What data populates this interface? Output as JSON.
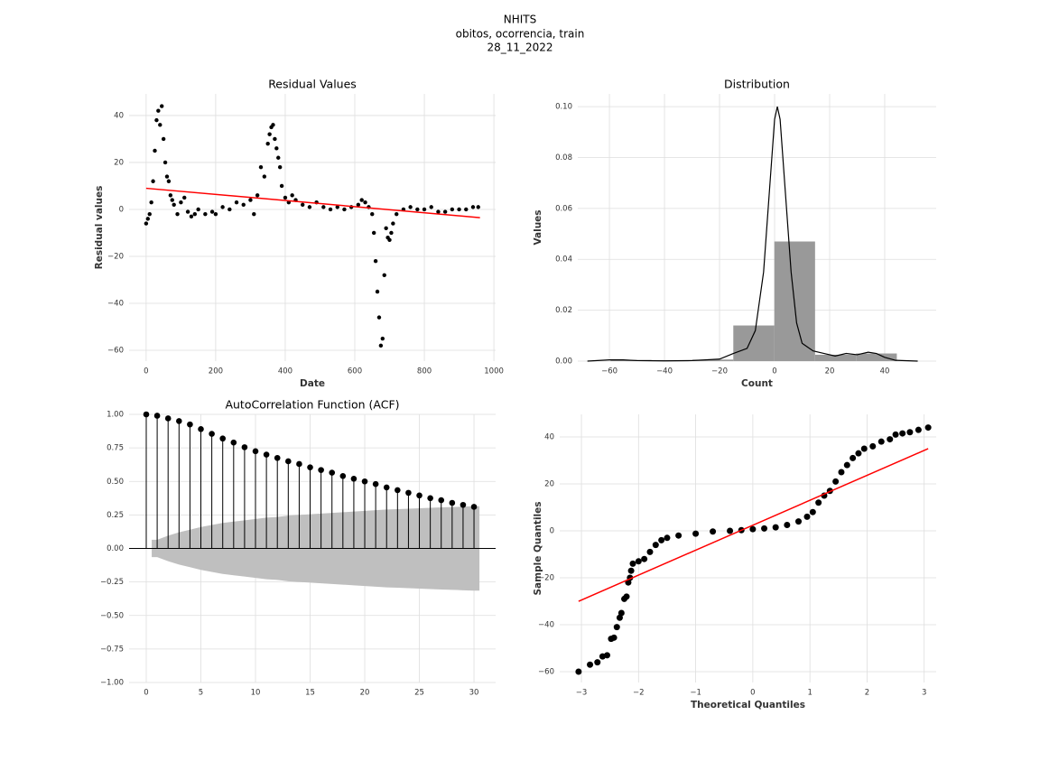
{
  "suptitle": [
    "NHITS",
    "obitos, ocorrencia, train",
    "28_11_2022"
  ],
  "chart_data": [
    {
      "type": "scatter",
      "title": "Residual Values",
      "x_label": "Date",
      "y_label": "Residual values",
      "grid": true,
      "xlim": [
        -49,
        1005
      ],
      "ylim": [
        -64.6,
        49.2
      ],
      "xticks": [
        0,
        200,
        400,
        600,
        800,
        1000
      ],
      "yticks": [
        {
          "value": -60,
          "label": "−60"
        },
        {
          "value": -40,
          "label": "−40"
        },
        {
          "value": -20,
          "label": "−20"
        },
        0,
        20,
        40
      ],
      "series": [
        {
          "type": "scatter",
          "color": "#000000",
          "x": [
            0,
            5,
            10,
            15,
            20,
            25,
            30,
            35,
            40,
            45,
            50,
            55,
            60,
            65,
            70,
            75,
            80,
            90,
            100,
            110,
            120,
            130,
            140,
            150,
            170,
            190,
            200,
            220,
            240,
            260,
            280,
            300,
            310,
            320,
            330,
            340,
            350,
            355,
            360,
            365,
            370,
            375,
            380,
            385,
            390,
            400,
            410,
            420,
            430,
            450,
            470,
            490,
            510,
            530,
            550,
            570,
            590,
            610,
            620,
            630,
            640,
            650,
            655,
            660,
            665,
            670,
            675,
            680,
            685,
            690,
            695,
            700,
            705,
            710,
            720,
            740,
            760,
            780,
            800,
            820,
            840,
            860,
            880,
            900,
            920,
            940,
            955
          ],
          "values": [
            -6,
            -4,
            -2,
            3,
            12,
            25,
            38,
            42,
            36,
            44,
            30,
            20,
            14,
            12,
            6,
            4,
            2,
            -2,
            3,
            5,
            -1,
            -3,
            -2,
            0,
            -2,
            -1,
            -2,
            1,
            0,
            3,
            2,
            4,
            -2,
            6,
            18,
            14,
            28,
            32,
            35,
            36,
            30,
            26,
            22,
            18,
            10,
            5,
            3,
            6,
            4,
            2,
            1,
            3,
            1,
            0,
            1,
            0,
            1,
            2,
            4,
            3,
            1,
            -2,
            -10,
            -22,
            -35,
            -46,
            -58,
            -55,
            -28,
            -8,
            -12,
            -13,
            -10,
            -6,
            -2,
            0,
            1,
            0,
            0,
            1,
            -1,
            -1,
            0,
            0,
            0,
            1,
            1
          ]
        },
        {
          "type": "line",
          "color": "#ff0000",
          "x": [
            0,
            960
          ],
          "values": [
            9,
            -3.5
          ]
        }
      ]
    },
    {
      "type": "histogram",
      "title": "Distribution",
      "x_label": "Count",
      "y_label": "Values",
      "grid": true,
      "xlim": [
        -71.5,
        58.7
      ],
      "ylim": [
        0,
        0.105
      ],
      "xticks": [
        {
          "value": -60,
          "label": "−60"
        },
        {
          "value": -40,
          "label": "−40"
        },
        {
          "value": -20,
          "label": "−20"
        },
        0,
        20,
        40
      ],
      "yticks": [
        {
          "value": 0,
          "label": "0.00"
        },
        {
          "value": 0.02,
          "label": "0.02"
        },
        {
          "value": 0.04,
          "label": "0.04"
        },
        {
          "value": 0.06,
          "label": "0.06"
        },
        {
          "value": 0.08,
          "label": "0.08"
        },
        {
          "value": 0.1,
          "label": "0.10"
        }
      ],
      "color": "#999999",
      "bins": [
        -59.6,
        -44.7,
        -29.9,
        -15.0,
        -0.1,
        14.7,
        29.6,
        44.4
      ],
      "values": [
        0.0005,
        0.0004,
        0.0006,
        0.014,
        0.047,
        0.0025,
        0.003
      ],
      "kde": {
        "color": "#000000",
        "x": [
          -68,
          -60,
          -55,
          -50,
          -40,
          -30,
          -20,
          -15,
          -10,
          -7,
          -4,
          -2,
          0,
          1,
          2,
          4,
          6,
          8,
          10,
          14,
          18,
          22,
          26,
          30,
          34,
          37,
          40,
          44,
          52
        ],
        "values": [
          0,
          0.0005,
          0.0005,
          0.0002,
          0.0001,
          0.0002,
          0.0008,
          0.003,
          0.005,
          0.012,
          0.035,
          0.065,
          0.095,
          0.1,
          0.095,
          0.065,
          0.035,
          0.015,
          0.007,
          0.004,
          0.003,
          0.002,
          0.003,
          0.0025,
          0.0035,
          0.003,
          0.0015,
          0.0003,
          0
        ]
      }
    },
    {
      "type": "stem",
      "title": "AutoCorrelation Function (ACF)",
      "grid": true,
      "xlim": [
        -1.57,
        31.98
      ],
      "ylim": [
        -1.0,
        1.0
      ],
      "xticks": [
        0,
        5,
        10,
        15,
        20,
        25,
        30
      ],
      "yticks": [
        {
          "value": -1,
          "label": "−1.00"
        },
        {
          "value": -0.75,
          "label": "−0.75"
        },
        {
          "value": -0.5,
          "label": "−0.50"
        },
        {
          "value": -0.25,
          "label": "−0.25"
        },
        {
          "value": 0,
          "label": "0.00"
        },
        {
          "value": 0.25,
          "label": "0.25"
        },
        {
          "value": 0.5,
          "label": "0.50"
        },
        {
          "value": 0.75,
          "label": "0.75"
        },
        {
          "value": 1,
          "label": "1.00"
        }
      ],
      "color": "#000000",
      "x": [
        0,
        1,
        2,
        3,
        4,
        5,
        6,
        7,
        8,
        9,
        10,
        11,
        12,
        13,
        14,
        15,
        16,
        17,
        18,
        19,
        20,
        21,
        22,
        23,
        24,
        25,
        26,
        27,
        28,
        29,
        30
      ],
      "values": [
        1.0,
        0.99,
        0.97,
        0.95,
        0.925,
        0.89,
        0.855,
        0.82,
        0.79,
        0.755,
        0.725,
        0.7,
        0.675,
        0.65,
        0.63,
        0.605,
        0.585,
        0.565,
        0.54,
        0.52,
        0.5,
        0.48,
        0.455,
        0.435,
        0.415,
        0.395,
        0.375,
        0.36,
        0.34,
        0.325,
        0.31
      ],
      "band_color": "#bfbfbf",
      "band_x": [
        0.5,
        1,
        2,
        3,
        4,
        5,
        6,
        7,
        8,
        9,
        10,
        11,
        12,
        13,
        14,
        15,
        16,
        17,
        18,
        19,
        20,
        21,
        22,
        23,
        24,
        25,
        26,
        27,
        28,
        29,
        30,
        30.5
      ],
      "band_upper": [
        0.065,
        0.065,
        0.095,
        0.12,
        0.14,
        0.16,
        0.175,
        0.19,
        0.2,
        0.21,
        0.22,
        0.23,
        0.235,
        0.245,
        0.25,
        0.255,
        0.26,
        0.265,
        0.27,
        0.275,
        0.28,
        0.285,
        0.29,
        0.293,
        0.296,
        0.3,
        0.303,
        0.306,
        0.309,
        0.312,
        0.315,
        0.315
      ],
      "band_lower": [
        -0.065,
        -0.065,
        -0.095,
        -0.12,
        -0.14,
        -0.16,
        -0.175,
        -0.19,
        -0.2,
        -0.21,
        -0.22,
        -0.23,
        -0.235,
        -0.245,
        -0.25,
        -0.255,
        -0.26,
        -0.265,
        -0.27,
        -0.275,
        -0.28,
        -0.285,
        -0.29,
        -0.293,
        -0.296,
        -0.3,
        -0.303,
        -0.306,
        -0.309,
        -0.312,
        -0.315,
        -0.315
      ]
    },
    {
      "type": "scatter",
      "x_label": "Theoretical Quantiles",
      "y_label": "Sample Quantiles",
      "grid": true,
      "xlim": [
        -3.38,
        3.21
      ],
      "ylim": [
        -64.6,
        49.6
      ],
      "xticks": [
        {
          "value": -3,
          "label": "−3"
        },
        {
          "value": -2,
          "label": "−2"
        },
        {
          "value": -1,
          "label": "−1"
        },
        0,
        1,
        2,
        3
      ],
      "yticks": [
        {
          "value": -60,
          "label": "−60"
        },
        {
          "value": -40,
          "label": "−40"
        },
        {
          "value": -20,
          "label": "−20"
        },
        0,
        20,
        40
      ],
      "series": [
        {
          "type": "scatter",
          "color": "#000000",
          "x": [
            -3.05,
            -2.85,
            -2.72,
            -2.63,
            -2.55,
            -2.48,
            -2.43,
            -2.38,
            -2.33,
            -2.3,
            -2.25,
            -2.21,
            -2.18,
            -2.15,
            -2.13,
            -2.1,
            -2.0,
            -1.9,
            -1.8,
            -1.7,
            -1.6,
            -1.5,
            -1.3,
            -1.0,
            -0.7,
            -0.4,
            -0.2,
            0,
            0.2,
            0.4,
            0.6,
            0.8,
            0.95,
            1.05,
            1.15,
            1.25,
            1.35,
            1.45,
            1.55,
            1.65,
            1.75,
            1.85,
            1.95,
            2.1,
            2.25,
            2.4,
            2.5,
            2.62,
            2.75,
            2.9,
            3.07
          ],
          "values": [
            -60,
            -57,
            -56,
            -53.5,
            -53,
            -46,
            -45.5,
            -41,
            -37,
            -35,
            -29,
            -28,
            -22,
            -20,
            -17,
            -14,
            -13,
            -12,
            -9,
            -6,
            -4,
            -3,
            -2,
            -1.2,
            -0.3,
            0,
            0.3,
            0.7,
            1.0,
            1.5,
            2.5,
            4,
            6,
            8,
            12,
            15,
            17,
            21,
            25,
            28,
            31,
            33,
            35,
            36,
            38,
            39,
            41,
            41.5,
            42,
            43,
            44
          ]
        },
        {
          "type": "line",
          "color": "#ff0000",
          "x": [
            -3.05,
            3.07
          ],
          "values": [
            -30,
            35
          ]
        }
      ]
    }
  ]
}
